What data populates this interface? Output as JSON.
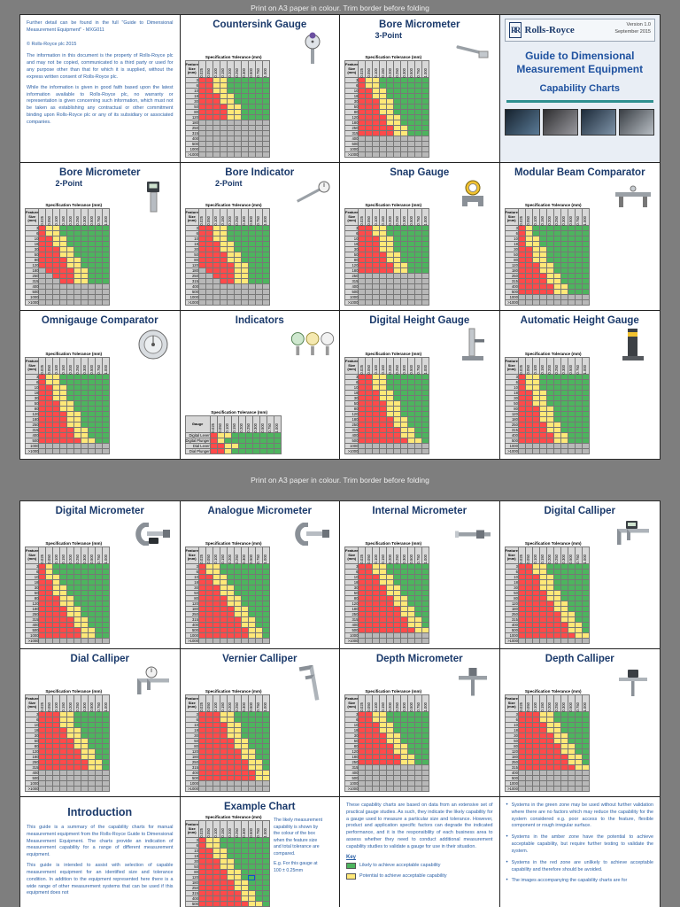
{
  "banner": "Print on A3 paper in colour. Trim border before folding",
  "colors": {
    "red": "#ff4a4a",
    "amber": "#ffe878",
    "green": "#4db45e",
    "na": "#b8b8b8",
    "navy": "#1b3a6b",
    "text_blue": "#2a5fa5",
    "teal": "#2e8f8f"
  },
  "chart_common": {
    "spec_header": "Specification Tolerance (mm)",
    "feature_label": "Feature Size (mm)",
    "col_headers": [
      "0.025",
      "0.050",
      "0.100",
      "0.150",
      "0.200",
      "0.250",
      "0.300",
      "0.500",
      "0.750",
      "1.000"
    ],
    "row_labels": [
      "3",
      "6",
      "10",
      "18",
      "30",
      "50",
      "80",
      "120",
      "180",
      "250",
      "315",
      "400",
      "500",
      "1000",
      ">1000"
    ]
  },
  "page1": {
    "info": {
      "note": "Further detail can be found in the full \"Guide to Dimensional Measurement Equipment\" - MXG011",
      "copyright": "© Rolls-Royce plc 2015",
      "para1": "The information in this document is the property of Rolls-Royce plc and may not be copied, communicated to a third party or used for any purpose other than that for which it is supplied, without the express written consent of Rolls-Royce plc.",
      "para2": "While the information is given in good faith based upon the latest information available to Rolls-Royce plc, no warranty or representation is given concerning such information, which must not be taken as establishing any contractual or other commitment binding upon Rolls-Royce plc or any of its subsidiary or associated companies."
    },
    "cover": {
      "brand": "Rolls-Royce",
      "version": "Version 1.0",
      "date": "September 2015",
      "title_line1": "Guide to Dimensional",
      "title_line2": "Measurement Equipment",
      "subtitle": "Capability Charts"
    },
    "panels": [
      {
        "type": "info"
      },
      {
        "type": "chart",
        "title": "Countersink Gauge",
        "chart": "countersink",
        "icon": "countersink-gauge"
      },
      {
        "type": "chart",
        "title": "Bore Micrometer",
        "subtitle": "3-Point",
        "chart": "bore_mic_3pt",
        "icon": "bore-micrometer-3point"
      },
      {
        "type": "cover"
      },
      {
        "type": "chart",
        "title": "Bore Micrometer",
        "subtitle": "2-Point",
        "chart": "bore_mic_2pt",
        "icon": "bore-micrometer-digital"
      },
      {
        "type": "chart",
        "title": "Bore Indicator",
        "subtitle": "2-Point",
        "chart": "bore_ind_2pt",
        "icon": "bore-indicator"
      },
      {
        "type": "chart",
        "title": "Snap Gauge",
        "chart": "snap",
        "icon": "snap-gauge"
      },
      {
        "type": "chart",
        "title": "Modular Beam Comparator",
        "chart": "beam_comp",
        "icon": "beam-comparator"
      },
      {
        "type": "chart",
        "title": "Omnigauge Comparator",
        "chart": "omnigauge",
        "icon": "omnigauge"
      },
      {
        "type": "chart",
        "title": "Indicators",
        "chart": "indicators",
        "icon": "indicator-dials"
      },
      {
        "type": "chart",
        "title": "Digital Height Gauge",
        "chart": "dig_height",
        "icon": "height-gauge"
      },
      {
        "type": "chart",
        "title": "Automatic Height Gauge",
        "chart": "auto_height",
        "icon": "auto-height-gauge"
      }
    ]
  },
  "page2": {
    "intro": {
      "title": "Introduction",
      "para1": "This guide is a summary of the capability charts for manual measurement equipment from the Rolls-Royce Guide to Dimensional Measurement Equipment. The charts provide an indication of measurement capability for a range of different measurement equipment.",
      "para2": "This guide is intended to assist with selection of capable measurement equipment for an identified size and tolerance condition. In addition to the equipment represented here there is a wide range of other measurement systems that can be used if this equipment does not"
    },
    "example": {
      "title": "Example Chart",
      "side_text": "The likely measurement capability is shown by the colour of the box when the feature size and total tolerance are compared.",
      "example_text": "E.g. For this gauge at 100 ± 0.25mm"
    },
    "key": {
      "para": "These capability charts are based on data from an extensive set of practical gauge studies. As such, they indicate the likely capability for a gauge used to measure a particular size and tolerance. However, product and application specific factors can degrade the indicated performance, and it is the responsibility of each business area to assess whether they need to conduct additional measurement capability studies to validate a gauge for use in their situation.",
      "key_label": "Key",
      "items": [
        {
          "color": "green",
          "label": "Likely to achieve acceptable capability"
        },
        {
          "color": "amber",
          "label": "Potential to achieve acceptable capability"
        }
      ]
    },
    "bullets": {
      "items": [
        "Systems in the green zone may be used without further validation where there are no factors which may reduce the capability for the system considered e.g. poor access to the feature, flexible component or rough irregular surface.",
        "Systems in the amber zone have the potential to achieve acceptable capability, but require further testing to validate the system.",
        "Systems in the red zone are unlikely to achieve acceptable capability and therefore should be avoided.",
        "The images accompanying the capability charts are for"
      ]
    },
    "panels": [
      {
        "type": "chart",
        "title": "Digital Micrometer",
        "chart": "dig_mic",
        "icon": "digital-micrometer"
      },
      {
        "type": "chart",
        "title": "Analogue Micrometer",
        "chart": "ana_mic",
        "icon": "analogue-micrometer"
      },
      {
        "type": "chart",
        "title": "Internal Micrometer",
        "chart": "int_mic",
        "icon": "internal-micrometer"
      },
      {
        "type": "chart",
        "title": "Digital Calliper",
        "chart": "dig_cal",
        "icon": "digital-calliper"
      },
      {
        "type": "chart",
        "title": "Dial Calliper",
        "chart": "dial_cal",
        "icon": "dial-calliper"
      },
      {
        "type": "chart",
        "title": "Vernier Calliper",
        "chart": "vern_cal",
        "icon": "vernier-calliper"
      },
      {
        "type": "chart",
        "title": "Depth Micrometer",
        "chart": "depth_mic",
        "icon": "depth-micrometer"
      },
      {
        "type": "chart",
        "title": "Depth Calliper",
        "chart": "depth_cal",
        "icon": "depth-calliper"
      },
      {
        "type": "intro"
      },
      {
        "type": "example"
      },
      {
        "type": "key"
      },
      {
        "type": "bullets"
      }
    ]
  },
  "charts": {
    "countersink": {
      "grid": [
        "RRYYGGGGGG",
        "RRYYGGGGGG",
        "RRYYGGGGGG",
        "RRRYYGGGGG",
        "RRRYYGGGGG",
        "RRRRYYGGGG",
        "RRRRYYGGGG",
        "RRRRYYGGGG",
        "XXXXXXXXXX",
        "XXXXXXXXXX",
        "XXXXXXXXXX",
        "XXXXXXXXXX",
        "XXXXXXXXXX",
        "XXXXXXXXXX",
        "XXXXXXXXXX"
      ]
    },
    "bore_mic_3pt": {
      "grid": [
        "RYYGGGGGGG",
        "RYYGGGGGGG",
        "RRYYGGGGGG",
        "RRYYGGGGGG",
        "RRRYYGGGGG",
        "RRRYYGGGGG",
        "RRRYYGGGGG",
        "RRRRYYGGGG",
        "RRRRYYGGGG",
        "RRRRRYYGGG",
        "RRRRRYYGGG",
        "XXXXXXXXXX",
        "XXXXXXXXXX",
        "XXXXXXXXXX",
        "XXXXXXXXXX"
      ]
    },
    "bore_mic_2pt": {
      "grid": [
        "RYYGGGGGGG",
        "RYYGGGGGGG",
        "RRYYGGGGGG",
        "RRYYGGGGGG",
        "RRRYYGGGGG",
        "RRRYYGGGGG",
        "RRRRYYGGGG",
        "RRRRYYGGGG",
        "XRRRRYYGGG",
        "XXRRRYYGGG",
        "XXXRRYYGGG",
        "XXXXXXXXXX",
        "XXXXXXXXXX",
        "XXXXXXXXXX",
        "XXXXXXXXXX"
      ]
    },
    "bore_ind_2pt": {
      "grid": [
        "RRYYGGGGGG",
        "RRYYGGGGGG",
        "RRYYGGGGGG",
        "RRRYYGGGGG",
        "RRRYYGGGGG",
        "RRRRYYGGGG",
        "RRRRYYGGGG",
        "RRRRRYYGGG",
        "XRRRRYYGGG",
        "XXRRRYYGGG",
        "XXXRRYYGGG",
        "XXXXXXXXXX",
        "XXXXXXXXXX",
        "XXXXXXXXXX",
        "XXXXXXXXXX"
      ]
    },
    "snap": {
      "grid": [
        "RRYYGGGGGG",
        "RRYYGGGGGG",
        "RRRYYGGGGG",
        "RRRYYGGGGG",
        "RRRYYGGGGG",
        "RRRRYYGGGG",
        "RRRRYYGGGG",
        "RRRRRYYGGG",
        "RRRRRYYGGG",
        "XXXXXXXXXX",
        "XXXXXXXXXX",
        "XXXXXXXXXX",
        "XXXXXXXXXX",
        "XXXXXXXXXX",
        "XXXXXXXXXX"
      ]
    },
    "beam_comp": {
      "grid": [
        "RYGGGGGGGG",
        "RYGGGGGGGG",
        "RYYGGGGGGG",
        "RYYGGGGGGG",
        "RRYYGGGGGG",
        "RRYYGGGGGG",
        "RRYYGGGGGG",
        "RRRYYGGGGG",
        "RRRYYGGGGG",
        "RRRRYYGGGG",
        "RRRRYYGGGG",
        "RRRRRYYGGG",
        "RRRRRYYGGG",
        "XXXXXXXXXX",
        "XXXXXXXXXX"
      ]
    },
    "omnigauge": {
      "grid": [
        "RYYGGGGGGG",
        "RYYGGGGGGG",
        "RRYYGGGGGG",
        "RRYYGGGGGG",
        "RRYYGGGGGG",
        "RRRYYGGGGG",
        "RRRYYGGGGG",
        "RRRRYYGGGG",
        "RRRRYYGGGG",
        "RRRRYYGGGG",
        "RRRRRYYGGG",
        "RRRRRYYGGG",
        "RRRRRRYYGG",
        "XXXXXXXXXX",
        "XXXXXXXXXX"
      ]
    },
    "indicators": {
      "corner": "Gauge",
      "rows": [
        "Digital Lever",
        "Digital Plunger",
        "Dial Lever",
        "Dial Plunger"
      ],
      "grid": [
        "RYYGGGGGGG",
        "RYGGGGGGGG",
        "RRYYGGGGGG",
        "RRYGGGGGGG"
      ]
    },
    "dig_height": {
      "grid": [
        "RRYYGGGGGG",
        "RRYYGGGGGG",
        "RRYYGGGGGG",
        "RRRYYGGGGG",
        "RRRYYGGGGG",
        "RRRRYYGGGG",
        "RRRRYYGGGG",
        "RRRRYYGGGG",
        "RRRRRYYGGG",
        "RRRRRYYGGG",
        "RRRRRRYYGG",
        "RRRRRRYYGG",
        "RRRRRRRYYG",
        "XXXXXXXXXX",
        "XXXXXXXXXX"
      ]
    },
    "auto_height": {
      "grid": [
        "RYYGGGGGGG",
        "RYYGGGGGGG",
        "RYYGGGGGGG",
        "RRYYGGGGGG",
        "RRYYGGGGGG",
        "RRYYGGGGGG",
        "RRRYYGGGGG",
        "RRRYYGGGGG",
        "RRRYYGGGGG",
        "RRRRYYGGGG",
        "RRRRYYGGGG",
        "RRRRRYYGGG",
        "RRRRRYYGGG",
        "XXXXXXXXXX",
        "XXXXXXXXXX"
      ]
    },
    "dig_mic": {
      "grid": [
        "RYGGGGGGGG",
        "RYGGGGGGGG",
        "RYYGGGGGGG",
        "RRYGGGGGGG",
        "RRYYGGGGGG",
        "RRYYGGGGGG",
        "RRRYYGGGGG",
        "RRRYYGGGGG",
        "RRRRYYGGGG",
        "RRRRYYGGGG",
        "RRRRRYYGGG",
        "RRRRRYYGGG",
        "RRRRRRYYGG",
        "RRRRRRYYGG",
        "XXXXXXXXXX"
      ]
    },
    "ana_mic": {
      "grid": [
        "RYYGGGGGGG",
        "RYYGGGGGGG",
        "RRYYGGGGGG",
        "RRYYGGGGGG",
        "RRRYYGGGGG",
        "RRRYYGGGGG",
        "RRRRYYGGGG",
        "RRRRYYGGGG",
        "RRRRRYYGGG",
        "RRRRRYYGGG",
        "RRRRRRYYGG",
        "RRRRRRYYGG",
        "RRRRRRRYYG",
        "RRRRRRRYYG",
        "XXXXXXXXXX"
      ]
    },
    "int_mic": {
      "grid": [
        "RRYYGGGGGG",
        "RRYYGGGGGG",
        "RRRYYGGGGG",
        "RRRYYGGGGG",
        "RRRRYYGGGG",
        "RRRRYYGGGG",
        "RRRRRYYGGG",
        "RRRRRYYGGG",
        "RRRRRRYYGG",
        "RRRRRRYYGG",
        "RRRRRRRYYG",
        "RRRRRRRYYG",
        "RRRRRRRRYY",
        "XXXXXXXXXX",
        "XXXXXXXXXX"
      ]
    },
    "dig_cal": {
      "grid": [
        "RRYYGGGGGG",
        "RRYYGGGGGG",
        "RRRYYGGGGG",
        "RRRYYGGGGG",
        "RRRYYGGGGG",
        "RRRRYYGGGG",
        "RRRRYYGGGG",
        "RRRRRYYGGG",
        "RRRRRYYGGG",
        "RRRRRRYYGG",
        "RRRRRRYYGG",
        "RRRRRRRYYG",
        "RRRRRRRYYG",
        "RRRRRRRRYY",
        "XXXXXXXXXX"
      ]
    },
    "dial_cal": {
      "grid": [
        "RRRYYGGGGG",
        "RRRYYGGGGG",
        "RRRYYGGGGG",
        "RRRRYYGGGG",
        "RRRRYYGGGG",
        "RRRRRYYGGG",
        "RRRRRYYGGG",
        "RRRRRRYYGG",
        "RRRRRRYYGG",
        "RRRRRRRYYG",
        "RRRRRRRYYG",
        "XXXXXXXXXX",
        "XXXXXXXXXX",
        "XXXXXXXXXX",
        "XXXXXXXXXX"
      ]
    },
    "vern_cal": {
      "grid": [
        "RRRYYGGGGG",
        "RRRYYGGGGG",
        "RRRRYYGGGG",
        "RRRRYYGGGG",
        "RRRRYYGGGG",
        "RRRRRYYGGG",
        "RRRRRYYGGG",
        "RRRRRRYYGG",
        "RRRRRRYYGG",
        "RRRRRRRYYG",
        "RRRRRRRYYG",
        "RRRRRRRRYY",
        "RRRRRRRRYY",
        "XXXXXXXXXX",
        "XXXXXXXXXX"
      ]
    },
    "depth_mic": {
      "grid": [
        "RRYYGGGGGG",
        "RRYYGGGGGG",
        "RRRYYGGGGG",
        "RRRYYGGGGG",
        "RRRRYYGGGG",
        "RRRRYYGGGG",
        "RRRRRYYGGG",
        "RRRRRYYGGG",
        "RRRRRRYYGG",
        "RRRRRRYYGG",
        "XXXXXXXXXX",
        "XXXXXXXXXX",
        "XXXXXXXXXX",
        "XXXXXXXXXX",
        "XXXXXXXXXX"
      ]
    },
    "depth_cal": {
      "grid": [
        "RRRYYGGGGG",
        "RRRYYGGGGG",
        "RRRRYYGGGG",
        "RRRRYYGGGG",
        "RRRRRYYGGG",
        "RRRRRYYGGG",
        "RRRRRRYYGG",
        "RRRRRRYYGG",
        "RRRRRRRYYG",
        "RRRRRRRYYG",
        "RRRRRRRRYY",
        "XXXXXXXXXX",
        "XXXXXXXXXX",
        "XXXXXXXXXX",
        "XXXXXXXXXX"
      ]
    },
    "example": {
      "highlight": {
        "row": 7,
        "col": 7
      },
      "grid": [
        "RYYGGGGGGG",
        "RYYGGGGGGG",
        "RRYYGGGGGG",
        "RRYYGGGGGG",
        "RRRYYGGGGG",
        "RRRYYGGGGG",
        "RRRRYYGGGG",
        "RRRRYYGGGG",
        "RRRRRYYGGG",
        "RRRRRYYGGG",
        "RRRRRRYYGG",
        "RRRRRRYYGG",
        "RRRRRRRYYG",
        "RRRRRRRYYG",
        "XXXXXXXXXX"
      ]
    }
  }
}
